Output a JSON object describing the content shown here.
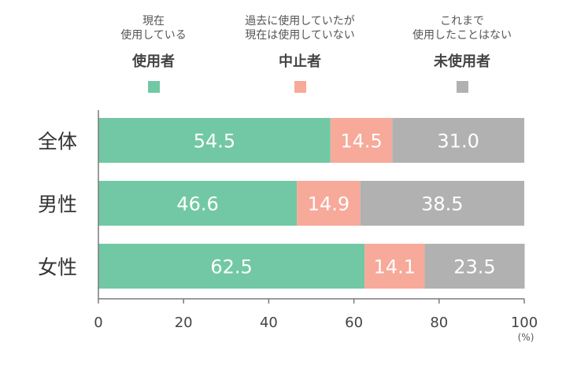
{
  "chart_data": {
    "type": "bar",
    "orientation": "horizontal",
    "stacked": true,
    "categories": [
      "全体",
      "男性",
      "女性"
    ],
    "series": [
      {
        "name": "使用者",
        "description_lines": [
          "現在",
          "使用している"
        ],
        "color": "#72c8a4",
        "values": [
          54.5,
          46.6,
          62.5
        ]
      },
      {
        "name": "中止者",
        "description_lines": [
          "過去に使用していたが",
          "現在は使用していない"
        ],
        "color": "#f7a99a",
        "values": [
          14.5,
          14.9,
          14.1
        ]
      },
      {
        "name": "未使用者",
        "description_lines": [
          "これまで",
          "使用したことはない"
        ],
        "color": "#b1b1b1",
        "values": [
          31.0,
          38.5,
          23.5
        ]
      }
    ],
    "xlim": [
      0,
      100
    ],
    "xticks": [
      0,
      20,
      40,
      60,
      80,
      100
    ],
    "unit": "(%)",
    "legend_position": "top",
    "grid": false
  }
}
